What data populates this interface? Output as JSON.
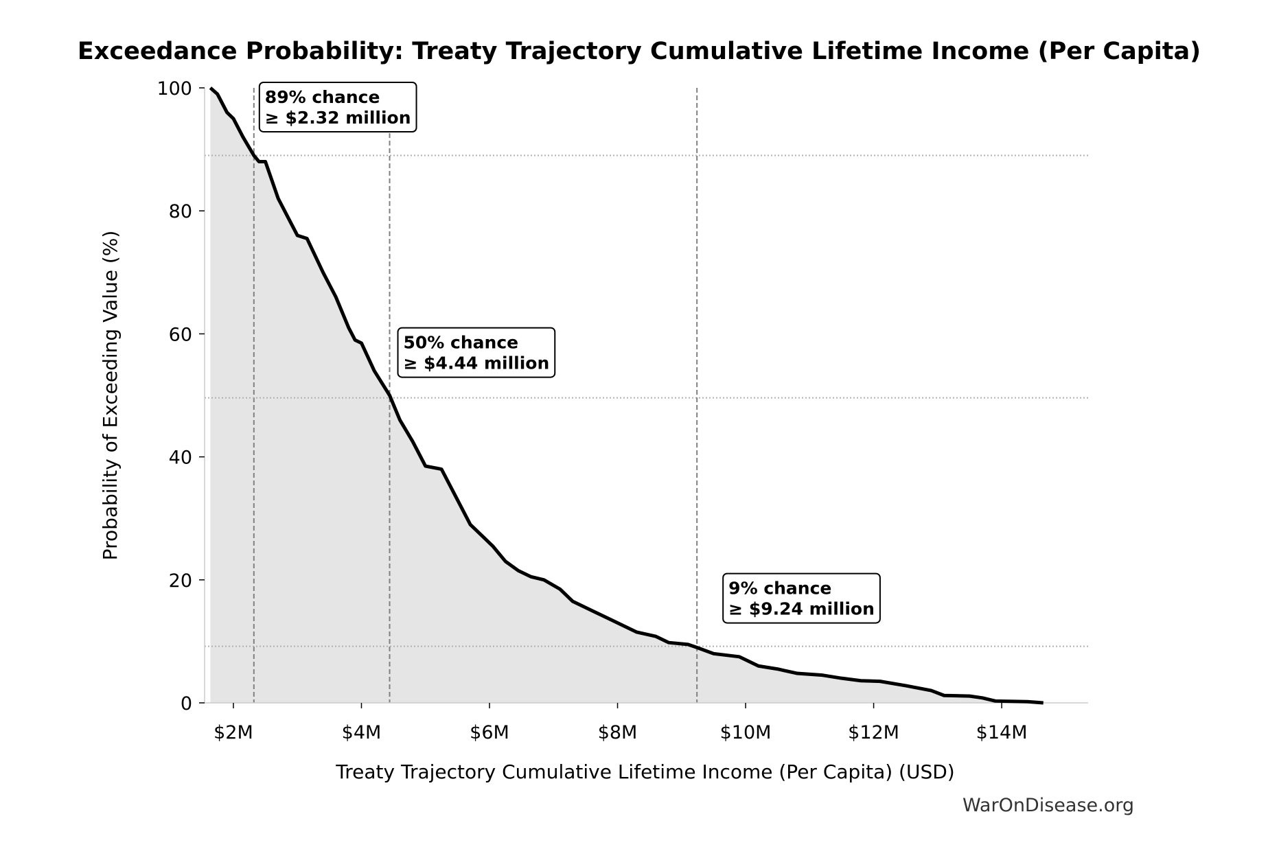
{
  "chart_data": {
    "type": "area",
    "title": "Exceedance Probability: Treaty Trajectory Cumulative Lifetime Income (Per Capita)",
    "xlabel": "Treaty Trajectory Cumulative Lifetime Income (Per Capita) (USD)",
    "ylabel": "Probability of Exceeding Value (%)",
    "xlim": [
      1.55,
      15.35
    ],
    "ylim": [
      0,
      100
    ],
    "x_unit": "million USD",
    "x_ticks": [
      2,
      4,
      6,
      8,
      10,
      12,
      14
    ],
    "x_tick_labels": [
      "$2M",
      "$4M",
      "$6M",
      "$8M",
      "$10M",
      "$12M",
      "$14M"
    ],
    "y_ticks": [
      0,
      20,
      40,
      60,
      80,
      100
    ],
    "y_tick_labels": [
      "0",
      "20",
      "40",
      "60",
      "80",
      "100"
    ],
    "grid": false,
    "line_color": "#000000",
    "fill_color": "#e5e5e5",
    "series": [
      {
        "x": [
          1.64,
          1.75,
          1.9,
          2.0,
          2.15,
          2.32,
          2.4,
          2.5,
          2.7,
          2.85,
          3.0,
          3.15,
          3.4,
          3.6,
          3.8,
          3.9,
          4.0,
          4.2,
          4.44,
          4.6,
          4.8,
          5.0,
          5.25,
          5.5,
          5.7,
          5.9,
          6.05,
          6.25,
          6.45,
          6.65,
          6.85,
          7.1,
          7.3,
          7.6,
          7.9,
          8.2,
          8.3,
          8.6,
          8.8,
          9.1,
          9.24,
          9.5,
          9.9,
          10.2,
          10.5,
          10.8,
          11.2,
          11.5,
          11.8,
          12.1,
          12.5,
          12.9,
          13.1,
          13.5,
          13.7,
          13.9,
          14.4,
          14.65
        ],
        "y": [
          100,
          99,
          96,
          95,
          92,
          89,
          88,
          88,
          82,
          79,
          76,
          75.5,
          70,
          66,
          61,
          59,
          58.5,
          54,
          50,
          46,
          42.5,
          38.5,
          38,
          33,
          29,
          27,
          25.5,
          23,
          21.5,
          20.5,
          20,
          18.5,
          16.5,
          15,
          13.5,
          12,
          11.5,
          10.8,
          9.8,
          9.5,
          9,
          8,
          7.5,
          6,
          5.5,
          4.8,
          4.5,
          4,
          3.6,
          3.5,
          2.8,
          2,
          1.2,
          1.1,
          0.8,
          0.3,
          0.2,
          0
        ]
      }
    ],
    "annotations": [
      {
        "x": 2.32,
        "y": 89,
        "line1": "89% chance",
        "line2": "≥ $2.32 million"
      },
      {
        "x": 4.44,
        "y": 49.6,
        "line1": "50% chance",
        "line2": "≥ $4.44 million"
      },
      {
        "x": 9.24,
        "y": 9.2,
        "line1": "9% chance",
        "line2": "≥ $9.24 million"
      }
    ],
    "credit": "WarOnDisease.org"
  }
}
